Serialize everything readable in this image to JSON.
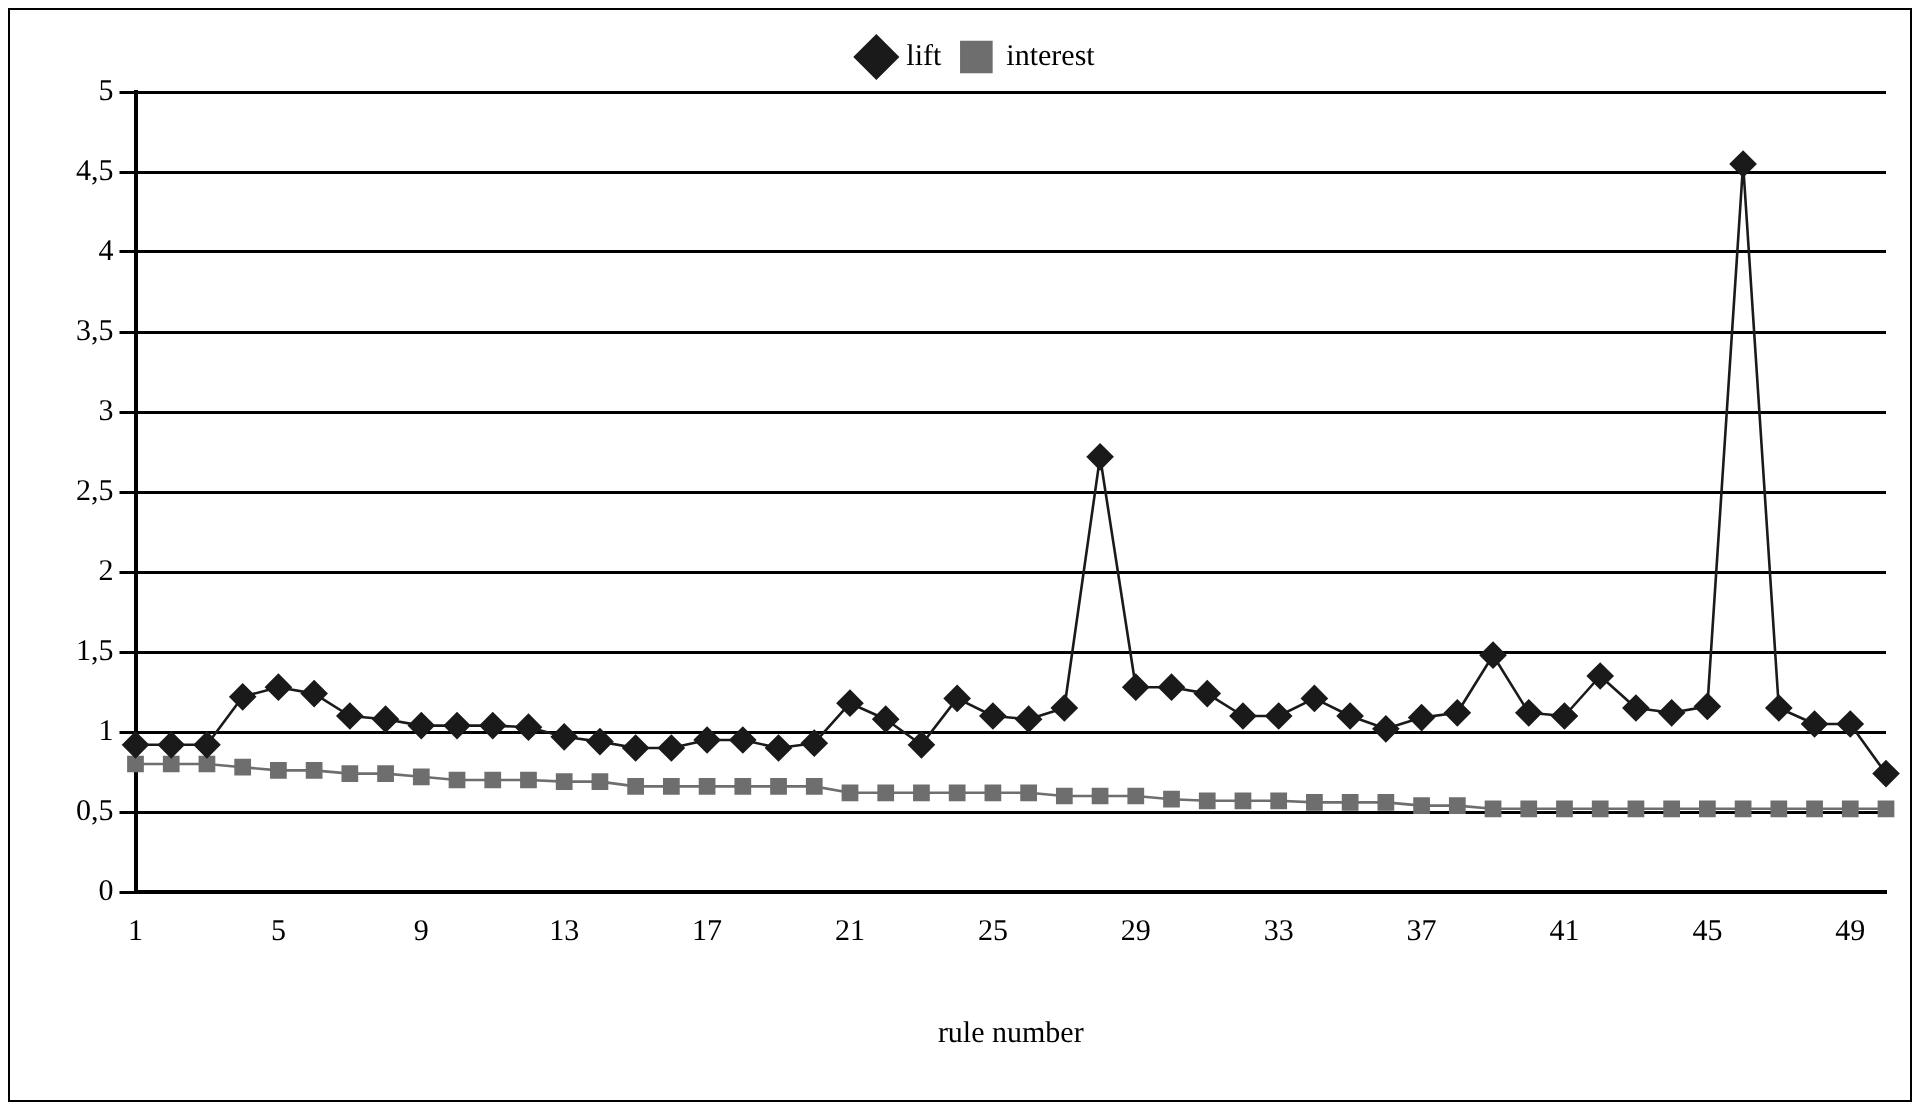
{
  "chart_data": {
    "type": "line",
    "xlabel": "rule number",
    "categories": [
      "1",
      null,
      null,
      null,
      "5",
      null,
      null,
      null,
      "9",
      null,
      null,
      null,
      "13",
      null,
      null,
      null,
      "17",
      null,
      null,
      null,
      "21",
      null,
      null,
      null,
      "25",
      null,
      null,
      null,
      "29",
      null,
      null,
      null,
      "33",
      null,
      null,
      null,
      "37",
      null,
      null,
      null,
      "41",
      null,
      null,
      null,
      "45",
      null,
      null,
      null,
      "49",
      null
    ],
    "series": [
      {
        "name": "lift",
        "color": "#1a1a1a",
        "marker": "diamond",
        "values": [
          0.92,
          0.92,
          0.92,
          1.22,
          1.28,
          1.24,
          1.1,
          1.08,
          1.04,
          1.04,
          1.04,
          1.03,
          0.97,
          0.94,
          0.9,
          0.9,
          0.95,
          0.95,
          0.9,
          0.93,
          1.18,
          1.08,
          0.92,
          1.21,
          1.1,
          1.08,
          1.15,
          2.72,
          1.28,
          1.28,
          1.24,
          1.1,
          1.1,
          1.21,
          1.1,
          1.02,
          1.09,
          1.12,
          1.48,
          1.12,
          1.1,
          1.35,
          1.15,
          1.12,
          1.16,
          4.55,
          1.15,
          1.05,
          1.05,
          0.74
        ]
      },
      {
        "name": "interest",
        "color": "#6e6e6e",
        "marker": "square",
        "values": [
          0.8,
          0.8,
          0.8,
          0.78,
          0.76,
          0.76,
          0.74,
          0.74,
          0.72,
          0.7,
          0.7,
          0.7,
          0.69,
          0.69,
          0.66,
          0.66,
          0.66,
          0.66,
          0.66,
          0.66,
          0.62,
          0.62,
          0.62,
          0.62,
          0.62,
          0.62,
          0.6,
          0.6,
          0.6,
          0.58,
          0.57,
          0.57,
          0.57,
          0.56,
          0.56,
          0.56,
          0.54,
          0.54,
          0.52,
          0.52,
          0.52,
          0.52,
          0.52,
          0.52,
          0.52,
          0.52,
          0.52,
          0.52,
          0.52,
          0.52
        ]
      }
    ],
    "ylim": [
      0,
      5
    ],
    "yticks": [
      0,
      {
        "value": 0.5,
        "label": "0,5"
      },
      1,
      {
        "value": 1.5,
        "label": "1,5"
      },
      2,
      {
        "value": 2.5,
        "label": "2,5"
      },
      3,
      {
        "value": 3.5,
        "label": "3,5"
      },
      4,
      {
        "value": 4.5,
        "label": "4,5"
      },
      5
    ],
    "grid": "y",
    "legend": "top",
    "line_style": "solid"
  }
}
